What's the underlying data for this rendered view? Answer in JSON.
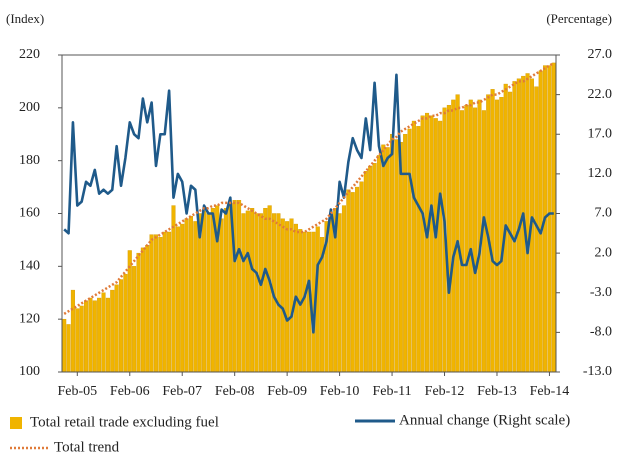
{
  "chart_data": {
    "type": "bar",
    "ylabel": "(Index)",
    "y2label": "(Percentage)",
    "categories": [
      null,
      null,
      null,
      null,
      null,
      null,
      null,
      null,
      null,
      null,
      null,
      null,
      null,
      null,
      null,
      null,
      null,
      null,
      null,
      null,
      null,
      null,
      null,
      null,
      null,
      null,
      null,
      null,
      null,
      null,
      null,
      null,
      null,
      null,
      null,
      null,
      null,
      null,
      null,
      null,
      null,
      null,
      null,
      null,
      null,
      null,
      null,
      null,
      null,
      null,
      null,
      null,
      null,
      null,
      null,
      null,
      null,
      null,
      null,
      null,
      null,
      null,
      null,
      null,
      null,
      null,
      null,
      null,
      null,
      null,
      null,
      null,
      null,
      null,
      null,
      null,
      null,
      null,
      null,
      null,
      null,
      null,
      null,
      null,
      null,
      null,
      null,
      null,
      null,
      null,
      null,
      null,
      null,
      null,
      null,
      null,
      null,
      null,
      null,
      null,
      null,
      null,
      null,
      null,
      null,
      null,
      null,
      null,
      null,
      null,
      null,
      null,
      null
    ],
    "xticks": [
      {
        "index": 3,
        "label": "Feb-05"
      },
      {
        "index": 15,
        "label": "Feb-06"
      },
      {
        "index": 27,
        "label": "Feb-07"
      },
      {
        "index": 39,
        "label": "Feb-08"
      },
      {
        "index": 51,
        "label": "Feb-09"
      },
      {
        "index": 63,
        "label": "Feb-10"
      },
      {
        "index": 75,
        "label": "Feb-11"
      },
      {
        "index": 87,
        "label": "Feb-12"
      },
      {
        "index": 99,
        "label": "Feb-13"
      },
      {
        "index": 111,
        "label": "Feb-14"
      }
    ],
    "ylim": [
      100,
      220
    ],
    "yticks": [
      100,
      120,
      140,
      160,
      180,
      200,
      220
    ],
    "y2lim": [
      -13,
      27
    ],
    "y2ticks": [
      {
        "value": -13,
        "label": "-13.0"
      },
      {
        "value": -8,
        "label": "-8.0"
      },
      {
        "value": -3,
        "label": "-3.0"
      },
      {
        "value": 2,
        "label": "2.0"
      },
      {
        "value": 7,
        "label": "7.0"
      },
      {
        "value": 12,
        "label": "12.0"
      },
      {
        "value": 17,
        "label": "17.0"
      },
      {
        "value": 22,
        "label": "22.0"
      },
      {
        "value": 27,
        "label": "27.0"
      }
    ],
    "series": [
      {
        "name": "Total retail trade excluding fuel",
        "type": "bar",
        "color": "#f0b400",
        "values": [
          120,
          118,
          131,
          124,
          125,
          127,
          128,
          127,
          128,
          130,
          128,
          131,
          133,
          135,
          137,
          146,
          140,
          145,
          147,
          148,
          152,
          152,
          151,
          153,
          153,
          163,
          155,
          156,
          158,
          159,
          157,
          160,
          161,
          160,
          162,
          163,
          158,
          162,
          164,
          165,
          165,
          160,
          161,
          162,
          160,
          160,
          162,
          163,
          160,
          160,
          158,
          157,
          158,
          156,
          154,
          153,
          153,
          153,
          155,
          151,
          157,
          158,
          162,
          160,
          163,
          169,
          168,
          170,
          172,
          176,
          178,
          179,
          182,
          186,
          185,
          190,
          188,
          187,
          190,
          192,
          195,
          193,
          197,
          198,
          197,
          196,
          195,
          200,
          201,
          203,
          205,
          199,
          201,
          203,
          200,
          203,
          199,
          205,
          207,
          203,
          204,
          209,
          206,
          210,
          211,
          212,
          213,
          211,
          208,
          214,
          216,
          216,
          217
        ]
      },
      {
        "name": "Annual change (Right scale)",
        "type": "line",
        "axis": "y2",
        "color": "#1f5a8a",
        "values": [
          5,
          4.5,
          18.5,
          8,
          8.5,
          11,
          10.5,
          12.5,
          9.5,
          10,
          9.5,
          10,
          15.5,
          10.5,
          14,
          18.5,
          17,
          16.5,
          21.5,
          18.5,
          21,
          13,
          17,
          17,
          22.5,
          9,
          12,
          11,
          7,
          10.5,
          10,
          4,
          8,
          7,
          7,
          3.5,
          7.5,
          7,
          9,
          1,
          2.5,
          1,
          2,
          0,
          -0.5,
          -2,
          0,
          -1.5,
          -3.5,
          -4.5,
          -5,
          -6.5,
          -6,
          -3.5,
          -4.5,
          -3.5,
          -1.5,
          -8,
          0.5,
          1.5,
          3.5,
          7.5,
          4,
          11,
          9,
          13.5,
          16.5,
          15,
          14,
          19,
          15,
          23.5,
          15.5,
          13,
          14,
          14.5,
          24.5,
          12,
          12,
          12,
          9,
          8,
          7,
          4,
          8,
          4,
          9.5,
          6,
          -3,
          1.5,
          3.5,
          0.5,
          0.5,
          2.5,
          -0.5,
          2,
          6.5,
          4,
          1,
          0.5,
          1,
          5.5,
          4.5,
          3.5,
          5,
          7,
          2,
          6.5,
          5.5,
          4.5,
          6.5,
          7,
          7
        ]
      },
      {
        "name": "Total trend",
        "type": "line",
        "style": "dotted",
        "color": "#e07b39",
        "values": [
          122,
          123,
          124,
          125,
          126,
          127,
          128,
          129,
          130,
          131,
          132,
          133,
          134,
          136,
          138,
          140,
          142,
          144,
          146,
          148,
          150,
          151,
          152,
          153,
          154,
          155,
          156,
          157,
          158,
          159,
          160,
          161,
          162,
          162,
          163,
          163,
          164,
          164,
          164,
          164,
          164,
          163,
          162,
          161,
          160,
          159,
          158,
          158,
          157,
          156,
          155,
          154,
          154,
          153,
          153,
          153,
          154,
          155,
          156,
          157,
          158,
          160,
          162,
          164,
          166,
          168,
          170,
          172,
          174,
          176,
          178,
          180,
          182,
          184,
          186,
          188,
          189,
          191,
          192,
          193,
          194,
          195,
          196,
          196,
          197,
          197,
          198,
          198,
          199,
          199,
          200,
          200,
          201,
          201,
          202,
          202,
          203,
          204,
          205,
          205,
          206,
          207,
          208,
          209,
          210,
          210,
          211,
          212,
          213,
          214,
          215,
          216,
          217
        ]
      }
    ]
  }
}
